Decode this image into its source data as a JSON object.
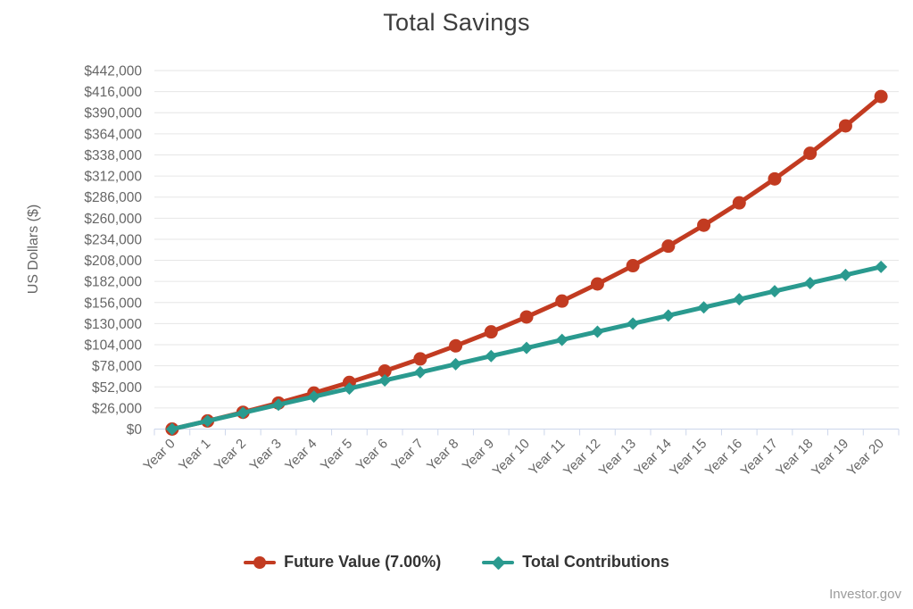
{
  "page": {
    "attribution": "Investor.gov"
  },
  "chart_data": {
    "type": "line",
    "title": "Total Savings",
    "xlabel": "",
    "ylabel": "US Dollars ($)",
    "categories": [
      "Year 0",
      "Year 1",
      "Year 2",
      "Year 3",
      "Year 4",
      "Year 5",
      "Year 6",
      "Year 7",
      "Year 8",
      "Year 9",
      "Year 10",
      "Year 11",
      "Year 12",
      "Year 13",
      "Year 14",
      "Year 15",
      "Year 16",
      "Year 17",
      "Year 18",
      "Year 19",
      "Year 20"
    ],
    "series": [
      {
        "name": "Future Value (7.00%)",
        "slug": "future-value",
        "color": "#c23b21",
        "marker": "circle",
        "values": [
          0,
          10000,
          20700,
          32100,
          44400,
          57500,
          71500,
          86500,
          102600,
          119800,
          138200,
          157800,
          178900,
          201400,
          225500,
          251300,
          278900,
          308400,
          340000,
          373800,
          410000
        ]
      },
      {
        "name": "Total Contributions",
        "slug": "total-contributions",
        "color": "#2a9a8f",
        "marker": "diamond",
        "values": [
          0,
          10000,
          20000,
          30000,
          40000,
          50000,
          60000,
          70000,
          80000,
          90000,
          100000,
          110000,
          120000,
          130000,
          140000,
          150000,
          160000,
          170000,
          180000,
          190000,
          200000
        ]
      }
    ],
    "ylim": [
      0,
      442000
    ],
    "ytick_step": 26000,
    "yticks": [
      "$0",
      "$26,000",
      "$52,000",
      "$78,000",
      "$104,000",
      "$130,000",
      "$156,000",
      "$182,000",
      "$208,000",
      "$234,000",
      "$260,000",
      "$286,000",
      "$312,000",
      "$338,000",
      "$364,000",
      "$390,000",
      "$416,000",
      "$442,000"
    ],
    "grid": true,
    "legend_position": "bottom",
    "grid_color": "#e6e6e6",
    "axis_line_color": "#ccd6eb",
    "label_color": "#666666"
  }
}
